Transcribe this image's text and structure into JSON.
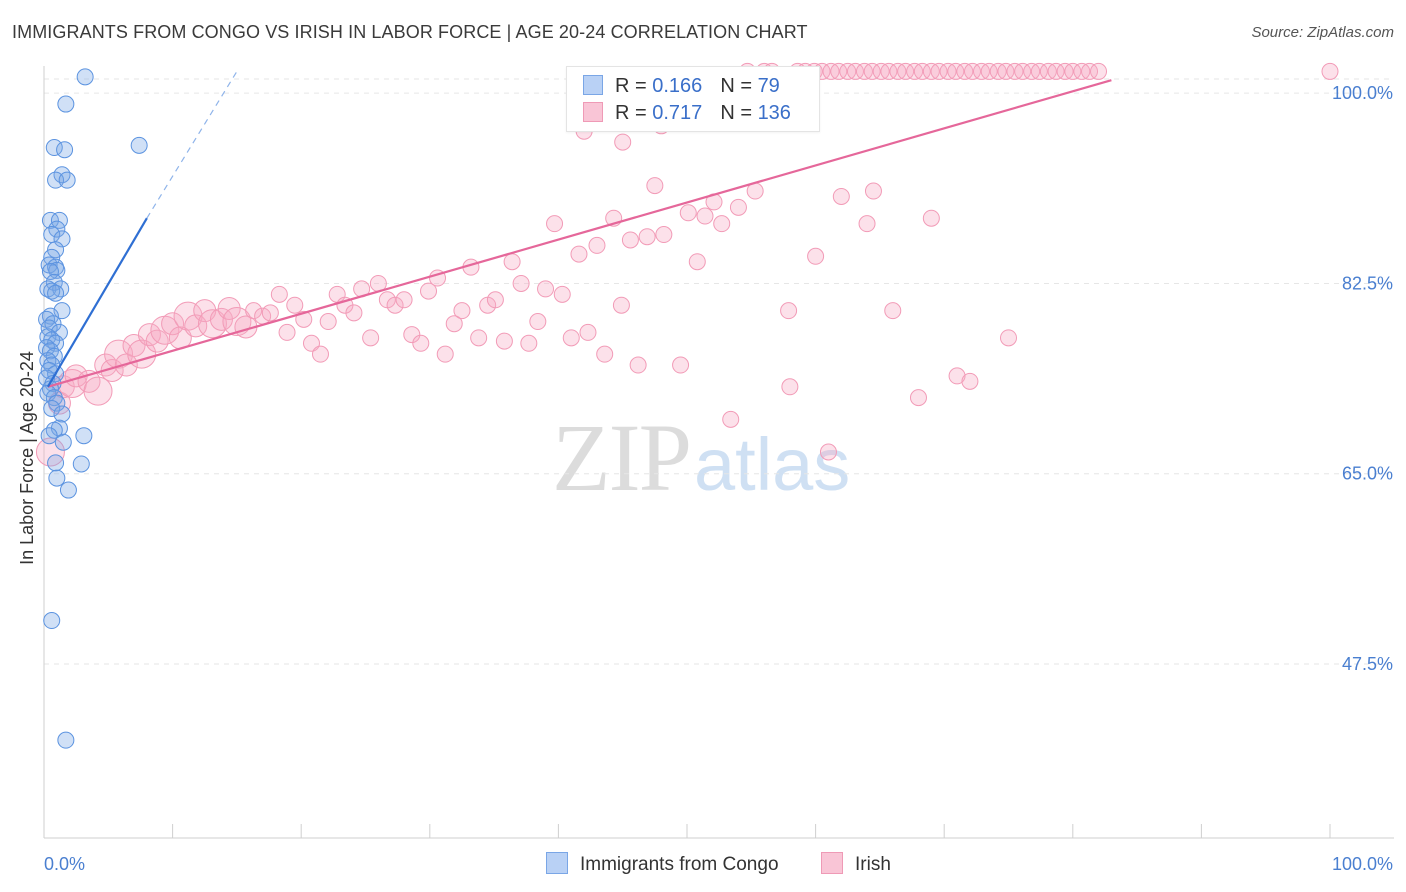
{
  "title": "IMMIGRANTS FROM CONGO VS IRISH IN LABOR FORCE | AGE 20-24 CORRELATION CHART",
  "source": "Source: ZipAtlas.com",
  "watermark": {
    "zip": "ZIP",
    "atlas": "atlas"
  },
  "colors": {
    "congo": "#5b93e0",
    "congo_line": "#2f6fd3",
    "irish": "#f29bb7",
    "irish_line": "#e5679a",
    "tick_label": "#4a7fd0"
  },
  "legend_top": {
    "congo": {
      "r_label": "R = ",
      "r_value": "0.166",
      "n_label": "N = ",
      "n_value": "79"
    },
    "irish": {
      "r_label": "R = ",
      "r_value": "0.717",
      "n_label": "N = ",
      "n_value": "136"
    }
  },
  "legend_bottom": {
    "congo": "Immigrants from Congo",
    "irish": "Irish"
  },
  "chart_data": {
    "type": "scatter",
    "title": "IMMIGRANTS FROM CONGO VS IRISH IN LABOR FORCE | AGE 20-24 CORRELATION CHART",
    "xlabel": "",
    "ylabel": "In Labor Force | Age 20-24",
    "xlim": [
      0,
      100
    ],
    "ylim": [
      31.5,
      102.5
    ],
    "x_tick_labels": [
      "0.0%",
      "100.0%"
    ],
    "y_ticks": [
      {
        "value": 100.0,
        "label": "100.0%"
      },
      {
        "value": 82.5,
        "label": "82.5%"
      },
      {
        "value": 65.0,
        "label": "65.0%"
      },
      {
        "value": 47.5,
        "label": "47.5%"
      }
    ],
    "grid": true,
    "legend_position": "top-center",
    "series": [
      {
        "name": "Immigrants from Congo",
        "color": "#5b93e0",
        "trend": {
          "x": [
            0.3,
            8.0
          ],
          "y": [
            73.0,
            88.5
          ],
          "dashed_extension_to": [
            15.0,
            102.0
          ]
        },
        "points": [
          [
            3.2,
            101.5
          ],
          [
            1.7,
            99.0
          ],
          [
            7.4,
            95.2
          ],
          [
            0.8,
            95.0
          ],
          [
            1.6,
            94.8
          ],
          [
            1.4,
            92.5
          ],
          [
            0.9,
            92.0
          ],
          [
            1.8,
            92.0
          ],
          [
            0.5,
            88.3
          ],
          [
            1.2,
            88.3
          ],
          [
            1.0,
            87.5
          ],
          [
            0.6,
            87.0
          ],
          [
            1.4,
            86.6
          ],
          [
            0.9,
            85.6
          ],
          [
            0.6,
            84.9
          ],
          [
            0.4,
            84.2
          ],
          [
            0.9,
            84.0
          ],
          [
            1.0,
            83.7
          ],
          [
            0.5,
            83.6
          ],
          [
            0.8,
            82.6
          ],
          [
            0.3,
            82.0
          ],
          [
            1.3,
            82.0
          ],
          [
            0.6,
            81.8
          ],
          [
            0.9,
            81.6
          ],
          [
            1.4,
            80.0
          ],
          [
            0.5,
            79.5
          ],
          [
            0.2,
            79.2
          ],
          [
            0.7,
            78.8
          ],
          [
            0.4,
            78.4
          ],
          [
            1.2,
            78.0
          ],
          [
            0.3,
            77.6
          ],
          [
            0.6,
            77.3
          ],
          [
            0.9,
            77.0
          ],
          [
            0.2,
            76.6
          ],
          [
            0.5,
            76.3
          ],
          [
            0.8,
            75.8
          ],
          [
            0.3,
            75.4
          ],
          [
            0.6,
            75.0
          ],
          [
            0.4,
            74.5
          ],
          [
            0.9,
            74.2
          ],
          [
            0.2,
            73.8
          ],
          [
            0.7,
            73.3
          ],
          [
            0.5,
            72.8
          ],
          [
            0.3,
            72.4
          ],
          [
            0.8,
            72.0
          ],
          [
            1.0,
            71.5
          ],
          [
            0.6,
            71.0
          ],
          [
            1.4,
            70.5
          ],
          [
            1.2,
            69.2
          ],
          [
            0.8,
            69.0
          ],
          [
            0.4,
            68.5
          ],
          [
            3.1,
            68.5
          ],
          [
            1.5,
            67.9
          ],
          [
            0.9,
            66.0
          ],
          [
            2.9,
            65.9
          ],
          [
            1.0,
            64.6
          ],
          [
            1.9,
            63.5
          ],
          [
            0.6,
            51.5
          ],
          [
            1.7,
            40.5
          ]
        ]
      },
      {
        "name": "Irish",
        "color": "#f29bb7",
        "trend": {
          "x": [
            0.3,
            83.0
          ],
          "y": [
            73.0,
            101.2
          ]
        },
        "points": [
          [
            0.5,
            67.0
          ],
          [
            1.2,
            71.5
          ],
          [
            1.5,
            73.0
          ],
          [
            2.2,
            73.3
          ],
          [
            2.5,
            74.0
          ],
          [
            3.5,
            73.5
          ],
          [
            4.2,
            72.6
          ],
          [
            4.8,
            75.0
          ],
          [
            5.3,
            74.5
          ],
          [
            5.8,
            76.0
          ],
          [
            6.4,
            75.0
          ],
          [
            7.0,
            76.8
          ],
          [
            7.6,
            76.0
          ],
          [
            8.2,
            77.8
          ],
          [
            8.8,
            77.2
          ],
          [
            9.4,
            78.2
          ],
          [
            10.0,
            78.8
          ],
          [
            10.6,
            77.5
          ],
          [
            11.2,
            79.5
          ],
          [
            11.8,
            78.6
          ],
          [
            12.5,
            80.0
          ],
          [
            13.1,
            78.8
          ],
          [
            13.8,
            79.2
          ],
          [
            14.4,
            80.2
          ],
          [
            15.0,
            79.0
          ],
          [
            15.7,
            78.5
          ],
          [
            16.3,
            80.0
          ],
          [
            17.0,
            79.5
          ],
          [
            17.6,
            79.8
          ],
          [
            18.3,
            81.5
          ],
          [
            18.9,
            78.0
          ],
          [
            19.5,
            80.5
          ],
          [
            20.2,
            79.2
          ],
          [
            20.8,
            77.0
          ],
          [
            21.5,
            76.0
          ],
          [
            22.1,
            79.0
          ],
          [
            22.8,
            81.5
          ],
          [
            23.4,
            80.5
          ],
          [
            24.1,
            79.8
          ],
          [
            24.7,
            82.0
          ],
          [
            25.4,
            77.5
          ],
          [
            26.0,
            82.5
          ],
          [
            26.7,
            81.0
          ],
          [
            27.3,
            80.5
          ],
          [
            28.0,
            81.0
          ],
          [
            28.6,
            77.8
          ],
          [
            29.3,
            77.0
          ],
          [
            29.9,
            81.8
          ],
          [
            30.6,
            83.0
          ],
          [
            31.2,
            76.0
          ],
          [
            31.9,
            78.8
          ],
          [
            32.5,
            80.0
          ],
          [
            33.2,
            84.0
          ],
          [
            33.8,
            77.5
          ],
          [
            34.5,
            80.5
          ],
          [
            35.1,
            81.0
          ],
          [
            35.8,
            77.2
          ],
          [
            36.4,
            84.5
          ],
          [
            37.1,
            82.5
          ],
          [
            37.7,
            77.0
          ],
          [
            38.4,
            79.0
          ],
          [
            39.0,
            82.0
          ],
          [
            39.7,
            88.0
          ],
          [
            40.3,
            81.5
          ],
          [
            41.0,
            77.5
          ],
          [
            41.6,
            85.2
          ],
          [
            42.3,
            78.0
          ],
          [
            43.0,
            86.0
          ],
          [
            43.6,
            76.0
          ],
          [
            44.3,
            88.5
          ],
          [
            44.9,
            80.5
          ],
          [
            45.6,
            86.5
          ],
          [
            46.2,
            75.0
          ],
          [
            46.9,
            86.8
          ],
          [
            47.5,
            91.5
          ],
          [
            48.2,
            87.0
          ],
          [
            48.8,
            98.0
          ],
          [
            49.5,
            75.0
          ],
          [
            50.1,
            89.0
          ],
          [
            50.8,
            84.5
          ],
          [
            51.4,
            88.7
          ],
          [
            52.1,
            90.0
          ],
          [
            52.7,
            88.0
          ],
          [
            53.4,
            70.0
          ],
          [
            54.0,
            89.5
          ],
          [
            54.7,
            102.0
          ],
          [
            55.3,
            91.0
          ],
          [
            56.0,
            102.0
          ],
          [
            56.6,
            102.0
          ],
          [
            57.3,
            99.8
          ],
          [
            57.9,
            80.0
          ],
          [
            58.6,
            102.0
          ],
          [
            59.2,
            102.0
          ],
          [
            59.9,
            102.0
          ],
          [
            60.5,
            102.0
          ],
          [
            61.2,
            102.0
          ],
          [
            61.8,
            102.0
          ],
          [
            62.5,
            102.0
          ],
          [
            63.1,
            102.0
          ],
          [
            63.8,
            102.0
          ],
          [
            64.4,
            102.0
          ],
          [
            65.1,
            102.0
          ],
          [
            65.7,
            102.0
          ],
          [
            66.4,
            102.0
          ],
          [
            67.0,
            102.0
          ],
          [
            67.7,
            102.0
          ],
          [
            68.3,
            102.0
          ],
          [
            69.0,
            102.0
          ],
          [
            69.6,
            102.0
          ],
          [
            70.3,
            102.0
          ],
          [
            70.9,
            102.0
          ],
          [
            71.6,
            102.0
          ],
          [
            72.2,
            102.0
          ],
          [
            72.9,
            102.0
          ],
          [
            73.5,
            102.0
          ],
          [
            74.2,
            102.0
          ],
          [
            74.8,
            102.0
          ],
          [
            75.5,
            102.0
          ],
          [
            76.1,
            102.0
          ],
          [
            76.8,
            102.0
          ],
          [
            77.4,
            102.0
          ],
          [
            78.1,
            102.0
          ],
          [
            78.7,
            102.0
          ],
          [
            79.4,
            102.0
          ],
          [
            80.0,
            102.0
          ],
          [
            80.7,
            102.0
          ],
          [
            81.3,
            102.0
          ],
          [
            82.0,
            102.0
          ],
          [
            100.0,
            102.0
          ],
          [
            42.0,
            96.5
          ],
          [
            45.0,
            95.5
          ],
          [
            48.0,
            97.0
          ],
          [
            58.0,
            73.0
          ],
          [
            61.0,
            67.0
          ],
          [
            64.0,
            88.0
          ],
          [
            68.0,
            72.0
          ],
          [
            71.0,
            74.0
          ],
          [
            72.0,
            73.5
          ],
          [
            75.0,
            77.5
          ],
          [
            66.0,
            80.0
          ],
          [
            60.0,
            85.0
          ],
          [
            62.0,
            90.5
          ],
          [
            64.5,
            91.0
          ],
          [
            69.0,
            88.5
          ]
        ]
      }
    ]
  }
}
